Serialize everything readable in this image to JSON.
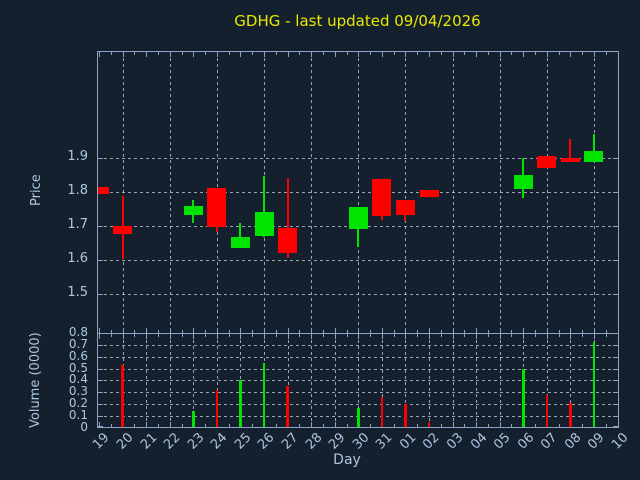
{
  "title": "GDHG - last updated 09/04/2026",
  "colors": {
    "background": "#14202e",
    "axis": "#8ba4c4",
    "text": "#adc6e0",
    "title": "#e8e800",
    "grid": "#c0c8d2",
    "up": "#00e400",
    "down": "#ff0000"
  },
  "chart_data": {
    "type": "candlestick",
    "title": "GDHG - last updated 09/04/2026",
    "xlabel": "Day",
    "price_ylabel": "Price",
    "volume_ylabel": "Volume (0000)",
    "grid": true,
    "legend_position": "none",
    "days": [
      "19",
      "20",
      "21",
      "22",
      "23",
      "24",
      "25",
      "26",
      "27",
      "28",
      "29",
      "30",
      "31",
      "01",
      "02",
      "03",
      "04",
      "05",
      "06",
      "07",
      "08",
      "09",
      "10"
    ],
    "price_ticks": [
      1.5,
      1.6,
      1.7,
      1.8,
      1.9
    ],
    "price_axis_range": [
      1.39,
      2.21
    ],
    "volume_ticks": [
      0,
      0.1,
      0.2,
      0.3,
      0.4,
      0.5,
      0.6,
      0.7,
      0.8
    ],
    "volume_axis_range": [
      0,
      0.8
    ],
    "candles": [
      {
        "day": "19",
        "open": 1.815,
        "high": 1.815,
        "low": 1.795,
        "close": 1.795
      },
      {
        "day": "20",
        "open": 1.7,
        "high": 1.788,
        "low": 1.603,
        "close": 1.676
      },
      {
        "day": "23",
        "open": 1.731,
        "high": 1.778,
        "low": 1.71,
        "close": 1.759
      },
      {
        "day": "24",
        "open": 1.811,
        "high": 1.811,
        "low": 1.682,
        "close": 1.698
      },
      {
        "day": "25",
        "open": 1.636,
        "high": 1.708,
        "low": 1.636,
        "close": 1.668
      },
      {
        "day": "26",
        "open": 1.669,
        "high": 1.847,
        "low": 1.669,
        "close": 1.74
      },
      {
        "day": "27",
        "open": 1.695,
        "high": 1.84,
        "low": 1.607,
        "close": 1.62
      },
      {
        "day": "30",
        "open": 1.692,
        "high": 1.755,
        "low": 1.637,
        "close": 1.755
      },
      {
        "day": "31",
        "open": 1.838,
        "high": 1.838,
        "low": 1.718,
        "close": 1.73
      },
      {
        "day": "01",
        "open": 1.776,
        "high": 1.776,
        "low": 1.716,
        "close": 1.732
      },
      {
        "day": "02",
        "open": 1.806,
        "high": 1.806,
        "low": 1.786,
        "close": 1.786
      },
      {
        "day": "06",
        "open": 1.81,
        "high": 1.899,
        "low": 1.781,
        "close": 1.85
      },
      {
        "day": "07",
        "open": 1.906,
        "high": 1.906,
        "low": 1.872,
        "close": 1.872
      },
      {
        "day": "08",
        "open": 1.9,
        "high": 1.955,
        "low": 1.887,
        "close": 1.887
      },
      {
        "day": "09",
        "open": 1.887,
        "high": 1.97,
        "low": 1.887,
        "close": 1.921
      }
    ],
    "volumes": [
      {
        "day": "20",
        "value": 0.53,
        "direction": "down"
      },
      {
        "day": "23",
        "value": 0.14,
        "direction": "up"
      },
      {
        "day": "24",
        "value": 0.32,
        "direction": "down"
      },
      {
        "day": "25",
        "value": 0.4,
        "direction": "up"
      },
      {
        "day": "26",
        "value": 0.55,
        "direction": "up"
      },
      {
        "day": "27",
        "value": 0.35,
        "direction": "down"
      },
      {
        "day": "30",
        "value": 0.165,
        "direction": "up"
      },
      {
        "day": "31",
        "value": 0.26,
        "direction": "down"
      },
      {
        "day": "01",
        "value": 0.2,
        "direction": "down"
      },
      {
        "day": "02",
        "value": 0.05,
        "direction": "down"
      },
      {
        "day": "06",
        "value": 0.5,
        "direction": "up"
      },
      {
        "day": "07",
        "value": 0.28,
        "direction": "down"
      },
      {
        "day": "08",
        "value": 0.21,
        "direction": "down"
      },
      {
        "day": "09",
        "value": 0.72,
        "direction": "up"
      }
    ]
  }
}
